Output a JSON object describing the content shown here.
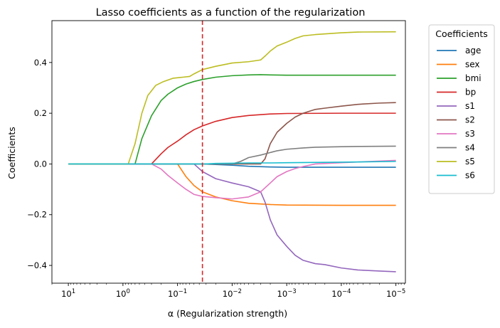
{
  "chart_data": {
    "type": "line",
    "title": "Lasso coefficients as a function of the regularization",
    "xlabel": "α (Regularization strength)",
    "ylabel": "Coefficients",
    "x_scale": "log",
    "x_reversed": true,
    "xlim": [
      20,
      6.7e-06
    ],
    "ylim": [
      -0.47,
      0.565
    ],
    "x_ticks": [
      {
        "value": 10,
        "base": "10",
        "exp": "1"
      },
      {
        "value": 1,
        "base": "10",
        "exp": "0"
      },
      {
        "value": 0.1,
        "base": "10",
        "exp": "−1"
      },
      {
        "value": 0.01,
        "base": "10",
        "exp": "−2"
      },
      {
        "value": 0.001,
        "base": "10",
        "exp": "−3"
      },
      {
        "value": 0.0001,
        "base": "10",
        "exp": "−4"
      },
      {
        "value": 1e-05,
        "base": "10",
        "exp": "−5"
      }
    ],
    "y_ticks": [
      {
        "value": 0.4,
        "label": "0.4"
      },
      {
        "value": 0.2,
        "label": "0.2"
      },
      {
        "value": 0.0,
        "label": "0.0"
      },
      {
        "value": -0.2,
        "label": "−0.2"
      },
      {
        "value": -0.4,
        "label": "−0.4"
      }
    ],
    "grid": false,
    "legend": {
      "title": "Coefficients",
      "placement": "outside-right"
    },
    "reference_line": {
      "x": 0.035,
      "color": "#d62728",
      "style": "dashed"
    },
    "series": [
      {
        "name": "age",
        "color": "#1f77b4",
        "points": [
          [
            10,
            0
          ],
          [
            1,
            0
          ],
          [
            0.1,
            0
          ],
          [
            0.035,
            0
          ],
          [
            0.02,
            -0.002
          ],
          [
            0.01,
            -0.005
          ],
          [
            0.005,
            -0.009
          ],
          [
            0.002,
            -0.012
          ],
          [
            0.001,
            -0.013
          ],
          [
            0.0001,
            -0.013
          ],
          [
            1e-05,
            -0.013
          ]
        ]
      },
      {
        "name": "sex",
        "color": "#ff7f0e",
        "points": [
          [
            10,
            0
          ],
          [
            1,
            0
          ],
          [
            0.1,
            0
          ],
          [
            0.07,
            -0.05
          ],
          [
            0.05,
            -0.085
          ],
          [
            0.035,
            -0.11
          ],
          [
            0.02,
            -0.13
          ],
          [
            0.01,
            -0.145
          ],
          [
            0.005,
            -0.155
          ],
          [
            0.002,
            -0.16
          ],
          [
            0.001,
            -0.162
          ],
          [
            0.0001,
            -0.163
          ],
          [
            1e-05,
            -0.163
          ]
        ]
      },
      {
        "name": "bmi",
        "color": "#2ca02c",
        "points": [
          [
            10,
            0
          ],
          [
            0.6,
            0
          ],
          [
            0.45,
            0.1
          ],
          [
            0.3,
            0.19
          ],
          [
            0.2,
            0.25
          ],
          [
            0.15,
            0.275
          ],
          [
            0.1,
            0.3
          ],
          [
            0.07,
            0.315
          ],
          [
            0.05,
            0.325
          ],
          [
            0.035,
            0.333
          ],
          [
            0.02,
            0.342
          ],
          [
            0.01,
            0.348
          ],
          [
            0.005,
            0.351
          ],
          [
            0.003,
            0.352
          ],
          [
            0.002,
            0.351
          ],
          [
            0.001,
            0.35
          ],
          [
            0.0001,
            0.35
          ],
          [
            1e-05,
            0.35
          ]
        ]
      },
      {
        "name": "bp",
        "color": "#d62728",
        "points": [
          [
            10,
            0
          ],
          [
            0.3,
            0
          ],
          [
            0.2,
            0.04
          ],
          [
            0.15,
            0.065
          ],
          [
            0.1,
            0.09
          ],
          [
            0.07,
            0.115
          ],
          [
            0.05,
            0.135
          ],
          [
            0.035,
            0.15
          ],
          [
            0.02,
            0.168
          ],
          [
            0.01,
            0.183
          ],
          [
            0.005,
            0.191
          ],
          [
            0.002,
            0.197
          ],
          [
            0.001,
            0.199
          ],
          [
            0.0001,
            0.2
          ],
          [
            1e-05,
            0.2
          ]
        ]
      },
      {
        "name": "s1",
        "color": "#9467bd",
        "points": [
          [
            10,
            0
          ],
          [
            0.05,
            0
          ],
          [
            0.035,
            -0.03
          ],
          [
            0.02,
            -0.058
          ],
          [
            0.01,
            -0.075
          ],
          [
            0.005,
            -0.09
          ],
          [
            0.003,
            -0.11
          ],
          [
            0.0025,
            -0.15
          ],
          [
            0.002,
            -0.22
          ],
          [
            0.0015,
            -0.28
          ],
          [
            0.001,
            -0.325
          ],
          [
            0.0007,
            -0.36
          ],
          [
            0.0005,
            -0.38
          ],
          [
            0.0003,
            -0.393
          ],
          [
            0.0002,
            -0.397
          ],
          [
            0.0001,
            -0.41
          ],
          [
            5e-05,
            -0.418
          ],
          [
            2e-05,
            -0.422
          ],
          [
            1e-05,
            -0.425
          ]
        ]
      },
      {
        "name": "s2",
        "color": "#8c564b",
        "points": [
          [
            10,
            0
          ],
          [
            0.003,
            0
          ],
          [
            0.0025,
            0.02
          ],
          [
            0.002,
            0.08
          ],
          [
            0.0015,
            0.125
          ],
          [
            0.001,
            0.16
          ],
          [
            0.0007,
            0.185
          ],
          [
            0.0005,
            0.2
          ],
          [
            0.0003,
            0.215
          ],
          [
            0.0002,
            0.22
          ],
          [
            0.0001,
            0.228
          ],
          [
            5e-05,
            0.235
          ],
          [
            2e-05,
            0.24
          ],
          [
            1e-05,
            0.242
          ]
        ]
      },
      {
        "name": "s3",
        "color": "#e377c2",
        "points": [
          [
            10,
            0
          ],
          [
            0.3,
            0
          ],
          [
            0.2,
            -0.02
          ],
          [
            0.15,
            -0.045
          ],
          [
            0.1,
            -0.075
          ],
          [
            0.07,
            -0.1
          ],
          [
            0.05,
            -0.12
          ],
          [
            0.035,
            -0.128
          ],
          [
            0.02,
            -0.133
          ],
          [
            0.01,
            -0.138
          ],
          [
            0.005,
            -0.13
          ],
          [
            0.003,
            -0.11
          ],
          [
            0.002,
            -0.075
          ],
          [
            0.0015,
            -0.05
          ],
          [
            0.001,
            -0.03
          ],
          [
            0.0007,
            -0.018
          ],
          [
            0.0005,
            -0.01
          ],
          [
            0.0003,
            0
          ],
          [
            0.0001,
            0.005
          ],
          [
            1e-05,
            0.014
          ]
        ]
      },
      {
        "name": "s4",
        "color": "#7f7f7f",
        "points": [
          [
            10,
            0
          ],
          [
            0.01,
            0
          ],
          [
            0.007,
            0.01
          ],
          [
            0.005,
            0.025
          ],
          [
            0.003,
            0.035
          ],
          [
            0.002,
            0.045
          ],
          [
            0.0015,
            0.052
          ],
          [
            0.001,
            0.058
          ],
          [
            0.0005,
            0.063
          ],
          [
            0.0003,
            0.066
          ],
          [
            0.0001,
            0.068
          ],
          [
            5e-05,
            0.069
          ],
          [
            1e-05,
            0.07
          ]
        ]
      },
      {
        "name": "s5",
        "color": "#bcbd22",
        "points": [
          [
            10,
            0
          ],
          [
            0.8,
            0
          ],
          [
            0.6,
            0.08
          ],
          [
            0.45,
            0.2
          ],
          [
            0.35,
            0.27
          ],
          [
            0.25,
            0.31
          ],
          [
            0.18,
            0.325
          ],
          [
            0.12,
            0.338
          ],
          [
            0.08,
            0.342
          ],
          [
            0.06,
            0.345
          ],
          [
            0.05,
            0.355
          ],
          [
            0.035,
            0.372
          ],
          [
            0.02,
            0.385
          ],
          [
            0.01,
            0.398
          ],
          [
            0.005,
            0.403
          ],
          [
            0.003,
            0.41
          ],
          [
            0.0025,
            0.425
          ],
          [
            0.002,
            0.445
          ],
          [
            0.0015,
            0.465
          ],
          [
            0.001,
            0.48
          ],
          [
            0.0007,
            0.495
          ],
          [
            0.0005,
            0.505
          ],
          [
            0.0003,
            0.51
          ],
          [
            0.0001,
            0.517
          ],
          [
            5e-05,
            0.52
          ],
          [
            1e-05,
            0.521
          ]
        ]
      },
      {
        "name": "s6",
        "color": "#17becf",
        "points": [
          [
            10,
            0
          ],
          [
            0.03,
            0
          ],
          [
            0.02,
            0.002
          ],
          [
            0.01,
            0.003
          ],
          [
            0.005,
            0.004
          ],
          [
            0.002,
            0.004
          ],
          [
            0.001,
            0.005
          ],
          [
            0.0001,
            0.007
          ],
          [
            1e-05,
            0.01
          ]
        ]
      }
    ]
  }
}
